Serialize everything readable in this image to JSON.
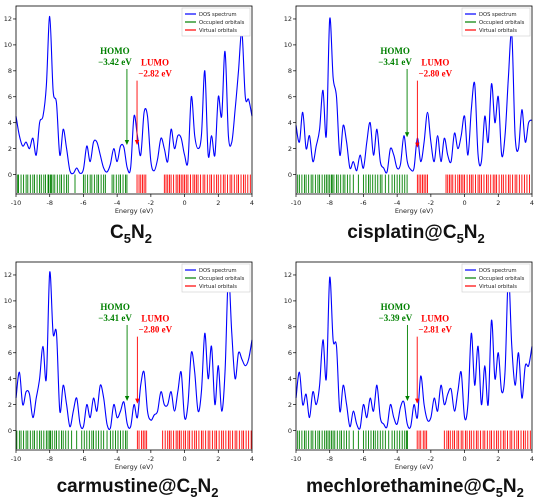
{
  "chart_data": [
    {
      "type": "line",
      "caption": {
        "prefix": "",
        "sub": "5",
        "mid": "C",
        "base": "C",
        "full": "C5N2"
      },
      "caption_parts": [
        "",
        "C",
        "5",
        "N",
        "2"
      ],
      "xlabel": "Energy (eV)",
      "xlim": [
        -10,
        4
      ],
      "ylim": [
        -1.5,
        13
      ],
      "xticks": [
        "-10",
        "-8",
        "-6",
        "-4",
        "-2",
        "0",
        "2",
        "4"
      ],
      "yticks": [
        "0",
        "2",
        "4",
        "6",
        "8",
        "10",
        "12"
      ],
      "legend": [
        "DOS spectrum",
        "Occupied orbitals",
        "Virtual orbitals"
      ],
      "homo": {
        "label": "HOMO",
        "value": "−3.42 eV",
        "x": -3.42,
        "y": 2.2
      },
      "lumo": {
        "label": "LUMO",
        "value": "−2.82 eV",
        "x": -2.82,
        "y": 2.2
      },
      "series": {
        "x": [
          -10,
          -9.8,
          -9.6,
          -9.4,
          -9.2,
          -9.0,
          -8.8,
          -8.6,
          -8.4,
          -8.2,
          -8.0,
          -7.8,
          -7.6,
          -7.4,
          -7.2,
          -7.0,
          -6.8,
          -6.6,
          -6.4,
          -6.2,
          -6.0,
          -5.8,
          -5.6,
          -5.4,
          -5.2,
          -5.0,
          -4.8,
          -4.6,
          -4.4,
          -4.2,
          -4.0,
          -3.8,
          -3.6,
          -3.4,
          -3.2,
          -3.0,
          -2.8,
          -2.6,
          -2.4,
          -2.2,
          -2.0,
          -1.8,
          -1.6,
          -1.4,
          -1.2,
          -1.0,
          -0.8,
          -0.6,
          -0.4,
          -0.2,
          0.0,
          0.2,
          0.4,
          0.6,
          0.8,
          1.0,
          1.2,
          1.4,
          1.6,
          1.8,
          2.0,
          2.2,
          2.4,
          2.6,
          2.8,
          3.0,
          3.2,
          3.4,
          3.6,
          3.8,
          4.0
        ],
        "y": [
          4.5,
          3.0,
          2.2,
          2.5,
          2.0,
          2.8,
          1.5,
          4.0,
          4.5,
          6.8,
          12.2,
          6.5,
          5.5,
          1.5,
          3.5,
          2.0,
          0.3,
          0.1,
          0.5,
          0.1,
          0.4,
          2.2,
          1.0,
          2.5,
          2.5,
          1.5,
          0.5,
          0.2,
          0.8,
          2.0,
          1.0,
          2.2,
          2.1,
          0.5,
          0.5,
          4.5,
          3.0,
          1.5,
          4.8,
          4.5,
          1.0,
          0.3,
          1.2,
          2.8,
          2.0,
          1.0,
          3.5,
          2.0,
          3.0,
          2.8,
          1.5,
          1.0,
          6.0,
          3.0,
          2.0,
          3.0,
          8.0,
          1.5,
          3.0,
          1.5,
          6.0,
          4.5,
          9.5,
          3.0,
          2.5,
          5.0,
          8.0,
          11.0,
          6.0,
          5.8,
          4.5
        ]
      },
      "occupied_levels": [
        -9.9,
        -9.85,
        -9.7,
        -9.55,
        -9.4,
        -9.3,
        -9.15,
        -9.0,
        -8.9,
        -8.75,
        -8.6,
        -8.5,
        -8.35,
        -8.25,
        -8.1,
        -8.05,
        -7.95,
        -7.9,
        -7.8,
        -7.7,
        -7.55,
        -7.4,
        -7.3,
        -7.15,
        -7.0,
        -6.9,
        -6.5,
        -6.0,
        -5.9,
        -5.75,
        -5.6,
        -5.5,
        -5.35,
        -5.2,
        -5.1,
        -4.95,
        -4.8,
        -4.7,
        -4.3,
        -4.2,
        -4.05,
        -3.9,
        -3.8,
        -3.65,
        -3.5,
        -3.42
      ],
      "virtual_levels": [
        -2.82,
        -2.7,
        -2.6,
        -2.5,
        -2.4,
        -2.3,
        -1.2,
        -1.1,
        -1.0,
        -0.9,
        -0.8,
        -0.65,
        -0.5,
        -0.4,
        -0.3,
        -0.2,
        -0.1,
        0.0,
        0.1,
        0.2,
        0.35,
        0.5,
        0.6,
        0.7,
        0.8,
        0.95,
        1.1,
        1.2,
        1.35,
        1.5,
        1.6,
        1.75,
        1.9,
        2.0,
        2.15,
        2.3,
        2.4,
        2.55,
        2.7,
        2.8,
        2.95,
        3.1,
        3.2,
        3.35,
        3.5,
        3.6,
        3.75,
        3.9
      ]
    },
    {
      "type": "line",
      "caption_parts": [
        "cisplatin@",
        "C",
        "5",
        "N",
        "2"
      ],
      "xlabel": "Energy (eV)",
      "xlim": [
        -10,
        4
      ],
      "ylim": [
        -1.5,
        13
      ],
      "xticks": [
        "-10",
        "-8",
        "-6",
        "-4",
        "-2",
        "0",
        "2",
        "4"
      ],
      "yticks": [
        "0",
        "2",
        "4",
        "6",
        "8",
        "10",
        "12"
      ],
      "legend": [
        "DOS spectrum",
        "Occupied orbitals",
        "Virtual orbitals"
      ],
      "homo": {
        "label": "HOMO",
        "value": "−3.41 eV",
        "x": -3.41,
        "y": 2.8
      },
      "lumo": {
        "label": "LUMO",
        "value": "−2.80 eV",
        "x": -2.8,
        "y": 2.0
      },
      "series": {
        "x": [
          -10,
          -9.8,
          -9.6,
          -9.4,
          -9.2,
          -9.0,
          -8.8,
          -8.6,
          -8.4,
          -8.2,
          -8.0,
          -7.8,
          -7.6,
          -7.4,
          -7.2,
          -7.0,
          -6.8,
          -6.6,
          -6.4,
          -6.2,
          -6.0,
          -5.8,
          -5.6,
          -5.4,
          -5.2,
          -5.0,
          -4.8,
          -4.6,
          -4.4,
          -4.2,
          -4.0,
          -3.8,
          -3.6,
          -3.4,
          -3.2,
          -3.0,
          -2.8,
          -2.6,
          -2.4,
          -2.2,
          -2.0,
          -1.8,
          -1.6,
          -1.4,
          -1.2,
          -1.0,
          -0.8,
          -0.6,
          -0.4,
          -0.2,
          0.0,
          0.2,
          0.4,
          0.6,
          0.8,
          1.0,
          1.2,
          1.4,
          1.6,
          1.8,
          2.0,
          2.2,
          2.4,
          2.6,
          2.8,
          3.0,
          3.2,
          3.4,
          3.6,
          3.8,
          4.0
        ],
        "y": [
          3.8,
          2.5,
          4.8,
          2.0,
          3.0,
          1.0,
          2.2,
          3.5,
          6.5,
          3.0,
          12.0,
          7.5,
          6.0,
          1.5,
          3.8,
          2.5,
          0.5,
          1.0,
          0.3,
          1.5,
          0.5,
          2.5,
          4.0,
          1.5,
          3.5,
          1.0,
          0.5,
          0.2,
          2.0,
          1.5,
          0.5,
          0.8,
          3.0,
          1.0,
          0.4,
          0.5,
          2.8,
          1.0,
          2.5,
          4.8,
          2.5,
          1.0,
          3.0,
          1.0,
          2.8,
          1.5,
          1.0,
          3.2,
          2.0,
          3.0,
          4.5,
          1.5,
          5.0,
          7.0,
          1.5,
          1.0,
          4.5,
          2.5,
          7.0,
          4.0,
          6.0,
          1.5,
          3.0,
          7.5,
          10.8,
          3.0,
          2.0,
          5.0,
          2.5,
          4.0,
          4.2
        ]
      },
      "occupied_levels": [
        -9.9,
        -9.8,
        -9.65,
        -9.5,
        -9.4,
        -9.25,
        -9.1,
        -9.0,
        -8.85,
        -8.7,
        -8.6,
        -8.45,
        -8.3,
        -8.2,
        -8.1,
        -8.0,
        -7.9,
        -7.85,
        -7.75,
        -7.6,
        -7.5,
        -7.35,
        -7.2,
        -7.1,
        -6.95,
        -6.8,
        -6.6,
        -6.3,
        -6.0,
        -5.85,
        -5.7,
        -5.6,
        -5.45,
        -5.3,
        -5.15,
        -5.0,
        -4.9,
        -4.7,
        -4.5,
        -4.3,
        -4.15,
        -4.0,
        -3.85,
        -3.7,
        -3.55,
        -3.41
      ],
      "virtual_levels": [
        -2.8,
        -2.7,
        -2.6,
        -2.5,
        -2.4,
        -2.3,
        -2.2,
        -1.1,
        -1.0,
        -0.9,
        -0.8,
        -0.7,
        -0.55,
        -0.4,
        -0.3,
        -0.2,
        -0.1,
        0.0,
        0.15,
        0.3,
        0.4,
        0.5,
        0.65,
        0.8,
        0.9,
        1.0,
        1.15,
        1.3,
        1.4,
        1.55,
        1.7,
        1.8,
        1.9,
        2.05,
        2.2,
        2.3,
        2.45,
        2.6,
        2.7,
        2.85,
        3.0,
        3.1,
        3.25,
        3.4,
        3.55,
        3.7,
        3.85
      ]
    },
    {
      "type": "line",
      "caption_parts": [
        "carmustine@",
        "C",
        "5",
        "N",
        "2"
      ],
      "xlabel": "Energy (eV)",
      "xlim": [
        -10,
        4
      ],
      "ylim": [
        -1.5,
        13
      ],
      "xticks": [
        "-10",
        "-8",
        "-6",
        "-4",
        "-2",
        "0",
        "2",
        "4"
      ],
      "yticks": [
        "0",
        "2",
        "4",
        "6",
        "8",
        "10",
        "12"
      ],
      "legend": [
        "DOS spectrum",
        "Occupied orbitals",
        "Virtual orbitals"
      ],
      "homo": {
        "label": "HOMO",
        "value": "−3.41 eV",
        "x": -3.41,
        "y": 2.2
      },
      "lumo": {
        "label": "LUMO",
        "value": "−2.80 eV",
        "x": -2.8,
        "y": 2.0
      },
      "series": {
        "x": [
          -10,
          -9.8,
          -9.6,
          -9.4,
          -9.2,
          -9.0,
          -8.8,
          -8.6,
          -8.4,
          -8.2,
          -8.0,
          -7.8,
          -7.6,
          -7.4,
          -7.2,
          -7.0,
          -6.8,
          -6.6,
          -6.4,
          -6.2,
          -6.0,
          -5.8,
          -5.6,
          -5.4,
          -5.2,
          -5.0,
          -4.8,
          -4.6,
          -4.4,
          -4.2,
          -4.0,
          -3.8,
          -3.6,
          -3.4,
          -3.2,
          -3.0,
          -2.8,
          -2.6,
          -2.4,
          -2.2,
          -2.0,
          -1.8,
          -1.6,
          -1.4,
          -1.2,
          -1.0,
          -0.8,
          -0.6,
          -0.4,
          -0.2,
          0.0,
          0.2,
          0.4,
          0.6,
          0.8,
          1.0,
          1.2,
          1.4,
          1.6,
          1.8,
          2.0,
          2.2,
          2.4,
          2.6,
          2.8,
          3.0,
          3.2,
          3.4,
          3.6,
          3.8,
          4.0
        ],
        "y": [
          2.5,
          4.5,
          2.0,
          3.0,
          2.8,
          1.0,
          2.5,
          4.0,
          6.5,
          4.0,
          12.2,
          7.5,
          7.5,
          1.5,
          3.5,
          2.0,
          0.3,
          1.5,
          2.5,
          0.5,
          0.3,
          2.0,
          1.0,
          2.5,
          1.5,
          3.5,
          2.5,
          0.5,
          0.2,
          2.0,
          1.0,
          1.5,
          2.2,
          0.5,
          0.3,
          2.0,
          1.0,
          3.5,
          4.5,
          1.5,
          0.8,
          1.2,
          1.5,
          3.0,
          2.0,
          2.0,
          3.0,
          1.5,
          3.0,
          4.5,
          1.0,
          2.0,
          6.0,
          4.5,
          1.5,
          3.0,
          7.5,
          4.0,
          6.5,
          2.0,
          5.0,
          1.5,
          4.5,
          12.0,
          7.5,
          4.0,
          6.0,
          5.5,
          5.0,
          5.5,
          7.0
        ]
      },
      "occupied_levels": [
        -9.95,
        -9.8,
        -9.7,
        -9.55,
        -9.4,
        -9.3,
        -9.15,
        -9.0,
        -8.9,
        -8.75,
        -8.6,
        -8.5,
        -8.35,
        -8.2,
        -8.1,
        -8.0,
        -7.95,
        -7.85,
        -7.7,
        -7.6,
        -7.45,
        -7.3,
        -7.2,
        -7.05,
        -6.9,
        -6.7,
        -6.4,
        -6.1,
        -5.95,
        -5.8,
        -5.65,
        -5.5,
        -5.4,
        -5.25,
        -5.1,
        -4.95,
        -4.8,
        -4.6,
        -4.4,
        -4.25,
        -4.1,
        -3.95,
        -3.8,
        -3.65,
        -3.5,
        -3.41
      ],
      "virtual_levels": [
        -2.8,
        -2.7,
        -2.55,
        -2.45,
        -2.35,
        -2.25,
        -1.3,
        -1.15,
        -1.0,
        -0.9,
        -0.8,
        -0.65,
        -0.5,
        -0.4,
        -0.3,
        -0.2,
        -0.05,
        0.05,
        0.2,
        0.3,
        0.45,
        0.6,
        0.7,
        0.85,
        1.0,
        1.1,
        1.25,
        1.4,
        1.5,
        1.65,
        1.8,
        1.9,
        2.05,
        2.2,
        2.3,
        2.45,
        2.6,
        2.7,
        2.85,
        3.0,
        3.1,
        3.25,
        3.4,
        3.5,
        3.65,
        3.8,
        3.95
      ]
    },
    {
      "type": "line",
      "caption_parts": [
        "mechlorethamine@",
        "C",
        "5",
        "N",
        "2"
      ],
      "xlabel": "Energy (eV)",
      "xlim": [
        -10,
        4
      ],
      "ylim": [
        -1.5,
        13
      ],
      "xticks": [
        "-10",
        "-8",
        "-6",
        "-4",
        "-2",
        "0",
        "2",
        "4"
      ],
      "yticks": [
        "0",
        "2",
        "4",
        "6",
        "8",
        "10",
        "12"
      ],
      "legend": [
        "DOS spectrum",
        "Occupied orbitals",
        "Virtual orbitals"
      ],
      "homo": {
        "label": "HOMO",
        "value": "−3.39 eV",
        "x": -3.39,
        "y": 2.2
      },
      "lumo": {
        "label": "LUMO",
        "value": "−2.81 eV",
        "x": -2.81,
        "y": 2.0
      },
      "series": {
        "x": [
          -10,
          -9.8,
          -9.6,
          -9.4,
          -9.2,
          -9.0,
          -8.8,
          -8.6,
          -8.4,
          -8.2,
          -8.0,
          -7.8,
          -7.6,
          -7.4,
          -7.2,
          -7.0,
          -6.8,
          -6.6,
          -6.4,
          -6.2,
          -6.0,
          -5.8,
          -5.6,
          -5.4,
          -5.2,
          -5.0,
          -4.8,
          -4.6,
          -4.4,
          -4.2,
          -4.0,
          -3.8,
          -3.6,
          -3.4,
          -3.2,
          -3.0,
          -2.8,
          -2.6,
          -2.4,
          -2.2,
          -2.0,
          -1.8,
          -1.6,
          -1.4,
          -1.2,
          -1.0,
          -0.8,
          -0.6,
          -0.4,
          -0.2,
          0.0,
          0.2,
          0.4,
          0.6,
          0.8,
          1.0,
          1.2,
          1.4,
          1.6,
          1.8,
          2.0,
          2.2,
          2.4,
          2.6,
          2.8,
          3.0,
          3.2,
          3.4,
          3.6,
          3.8,
          4.0
        ],
        "y": [
          2.5,
          4.5,
          2.0,
          2.8,
          1.0,
          3.0,
          2.0,
          3.5,
          7.0,
          4.0,
          11.8,
          7.0,
          6.5,
          1.5,
          3.5,
          2.0,
          0.3,
          1.5,
          0.5,
          0.2,
          2.0,
          1.0,
          2.5,
          1.5,
          3.5,
          1.0,
          0.5,
          0.3,
          2.0,
          1.0,
          0.5,
          1.8,
          2.2,
          0.5,
          0.3,
          2.0,
          1.0,
          4.2,
          2.0,
          0.8,
          1.0,
          2.5,
          1.5,
          3.5,
          2.0,
          2.8,
          3.2,
          1.5,
          3.0,
          4.5,
          1.0,
          2.0,
          7.5,
          3.5,
          6.5,
          2.0,
          5.0,
          2.0,
          8.5,
          4.0,
          6.0,
          3.0,
          4.5,
          12.0,
          6.5,
          3.5,
          6.0,
          2.5,
          5.0,
          5.0,
          6.5
        ]
      },
      "occupied_levels": [
        -9.9,
        -9.8,
        -9.65,
        -9.5,
        -9.4,
        -9.25,
        -9.1,
        -9.0,
        -8.85,
        -8.7,
        -8.6,
        -8.45,
        -8.3,
        -8.2,
        -8.1,
        -8.0,
        -7.9,
        -7.8,
        -7.7,
        -7.55,
        -7.4,
        -7.3,
        -7.15,
        -7.0,
        -6.85,
        -6.6,
        -6.3,
        -6.0,
        -5.85,
        -5.7,
        -5.55,
        -5.4,
        -5.3,
        -5.15,
        -5.0,
        -4.85,
        -4.7,
        -4.5,
        -4.3,
        -4.15,
        -4.0,
        -3.85,
        -3.7,
        -3.55,
        -3.45,
        -3.39
      ],
      "virtual_levels": [
        -2.81,
        -2.7,
        -2.6,
        -2.45,
        -2.35,
        -2.25,
        -1.2,
        -1.05,
        -0.95,
        -0.85,
        -0.7,
        -0.6,
        -0.45,
        -0.35,
        -0.2,
        -0.1,
        0.05,
        0.15,
        0.3,
        0.4,
        0.55,
        0.7,
        0.8,
        0.95,
        1.1,
        1.2,
        1.35,
        1.5,
        1.6,
        1.75,
        1.9,
        2.0,
        2.15,
        2.3,
        2.4,
        2.55,
        2.7,
        2.8,
        2.95,
        3.1,
        3.2,
        3.35,
        3.5,
        3.6,
        3.75,
        3.9
      ]
    }
  ]
}
